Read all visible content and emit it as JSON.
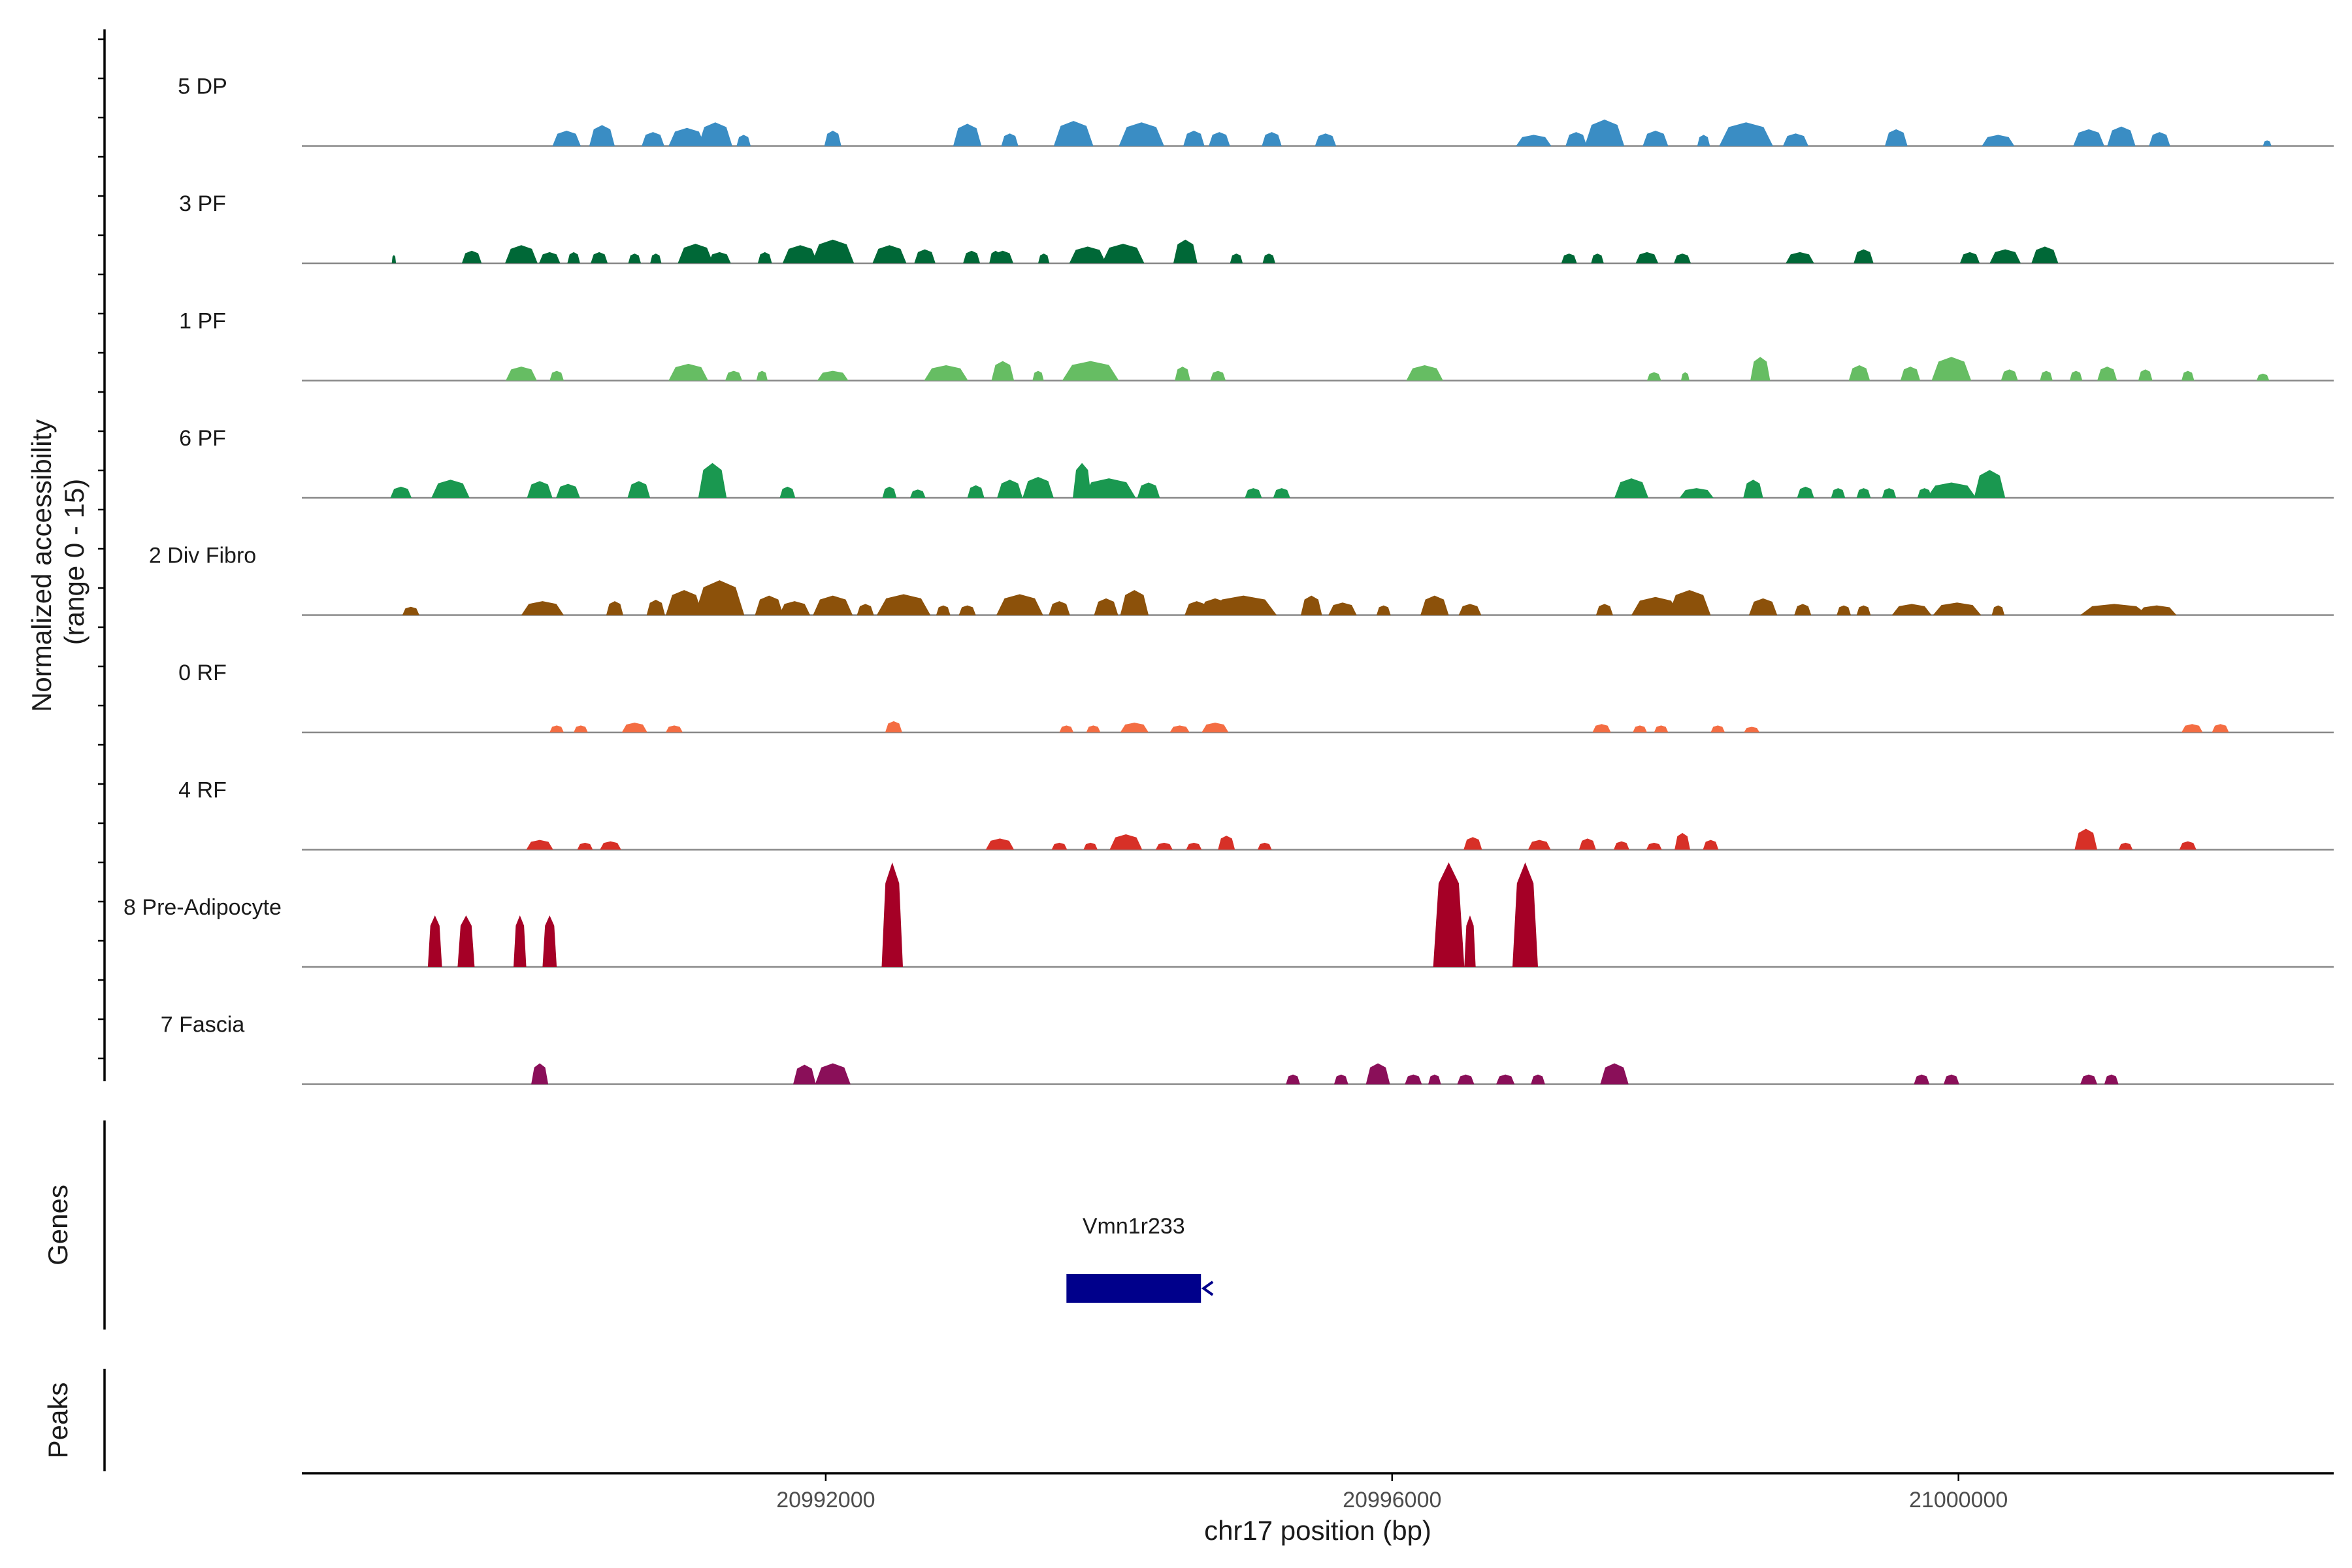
{
  "chart_data": {
    "type": "area",
    "subtype": "genome-coverage-tracks",
    "chromosome": "chr17",
    "xlim": [
      20988300,
      21002650
    ],
    "x_ticks": [
      20992000,
      20996000,
      21000000
    ],
    "x_tick_labels": [
      "20992000",
      "20996000",
      "21000000"
    ],
    "xlabel": "chr17 position (bp)",
    "ylabel_line1": "Normalized accessibility",
    "ylabel_line2": "(range 0 - 15)",
    "ylim": [
      0,
      15
    ],
    "series": [
      {
        "name": "5 DP",
        "color": "#3a8dc4",
        "peaks": [
          [
            20990170,
            2.2,
            200
          ],
          [
            20990420,
            3.0,
            180
          ],
          [
            20990780,
            2.0,
            160
          ],
          [
            20991020,
            2.6,
            260
          ],
          [
            20991220,
            3.4,
            240
          ],
          [
            20991420,
            1.6,
            100
          ],
          [
            20992050,
            2.2,
            120
          ],
          [
            20993000,
            3.2,
            200
          ],
          [
            20993300,
            1.8,
            120
          ],
          [
            20993750,
            3.6,
            280
          ],
          [
            20994230,
            3.4,
            320
          ],
          [
            20994600,
            2.2,
            150
          ],
          [
            20994780,
            2.0,
            150
          ],
          [
            20995150,
            2.0,
            140
          ],
          [
            20995530,
            1.8,
            150
          ],
          [
            20997000,
            1.6,
            250
          ],
          [
            20997300,
            2.0,
            150
          ],
          [
            20997500,
            3.8,
            280
          ],
          [
            20997860,
            2.2,
            180
          ],
          [
            20998200,
            1.6,
            90
          ],
          [
            20998500,
            3.4,
            380
          ],
          [
            20998850,
            1.8,
            180
          ],
          [
            20999560,
            2.4,
            160
          ],
          [
            21000280,
            1.6,
            230
          ],
          [
            21000920,
            2.4,
            220
          ],
          [
            21001150,
            2.8,
            200
          ],
          [
            21001420,
            2.0,
            150
          ],
          [
            21002180,
            0.8,
            60
          ]
        ]
      },
      {
        "name": "3 PF",
        "color": "#006837",
        "peaks": [
          [
            20988950,
            1.2,
            30
          ],
          [
            20989500,
            1.8,
            140
          ],
          [
            20989850,
            2.6,
            230
          ],
          [
            20990050,
            1.6,
            150
          ],
          [
            20990220,
            1.6,
            90
          ],
          [
            20990400,
            1.6,
            120
          ],
          [
            20990650,
            1.4,
            90
          ],
          [
            20990800,
            1.4,
            80
          ],
          [
            20991080,
            2.8,
            250
          ],
          [
            20991250,
            1.6,
            160
          ],
          [
            20991570,
            1.6,
            100
          ],
          [
            20991820,
            2.6,
            250
          ],
          [
            20992050,
            3.4,
            300
          ],
          [
            20992450,
            2.6,
            240
          ],
          [
            20992700,
            2.0,
            150
          ],
          [
            20993030,
            1.8,
            120
          ],
          [
            20993200,
            1.8,
            90
          ],
          [
            20993250,
            1.8,
            150
          ],
          [
            20993540,
            1.4,
            80
          ],
          [
            20993850,
            2.4,
            260
          ],
          [
            20994100,
            2.8,
            300
          ],
          [
            20994540,
            3.4,
            170
          ],
          [
            20994900,
            1.4,
            90
          ],
          [
            20995130,
            1.4,
            90
          ],
          [
            20997250,
            1.4,
            110
          ],
          [
            20997450,
            1.4,
            90
          ],
          [
            20997800,
            1.6,
            160
          ],
          [
            20998050,
            1.4,
            120
          ],
          [
            20998880,
            1.6,
            200
          ],
          [
            20999330,
            2.0,
            140
          ],
          [
            21000080,
            1.6,
            140
          ],
          [
            21000330,
            2.0,
            220
          ],
          [
            21000610,
            2.4,
            190
          ]
        ]
      },
      {
        "name": "1 PF",
        "color": "#66bd63",
        "peaks": [
          [
            20989850,
            2.0,
            220
          ],
          [
            20990100,
            1.4,
            100
          ],
          [
            20991030,
            2.4,
            280
          ],
          [
            20991350,
            1.4,
            120
          ],
          [
            20991550,
            1.4,
            80
          ],
          [
            20992050,
            1.4,
            220
          ],
          [
            20992850,
            2.2,
            310
          ],
          [
            20993250,
            2.8,
            160
          ],
          [
            20993500,
            1.4,
            80
          ],
          [
            20993870,
            2.8,
            400
          ],
          [
            20994520,
            2.0,
            110
          ],
          [
            20994770,
            1.4,
            110
          ],
          [
            20996230,
            2.2,
            260
          ],
          [
            20997850,
            1.2,
            100
          ],
          [
            20998070,
            1.2,
            60
          ],
          [
            20998600,
            3.4,
            140
          ],
          [
            20999300,
            2.2,
            150
          ],
          [
            20999660,
            2.0,
            140
          ],
          [
            20999950,
            3.4,
            280
          ],
          [
            21000360,
            1.6,
            120
          ],
          [
            21000620,
            1.4,
            90
          ],
          [
            21000830,
            1.4,
            90
          ],
          [
            21001050,
            2.0,
            140
          ],
          [
            21001320,
            1.6,
            100
          ],
          [
            21001620,
            1.4,
            90
          ],
          [
            21002150,
            1.0,
            90
          ]
        ]
      },
      {
        "name": "6 PF",
        "color": "#1a9850",
        "peaks": [
          [
            20989000,
            1.6,
            150
          ],
          [
            20989350,
            2.6,
            270
          ],
          [
            20989980,
            2.4,
            180
          ],
          [
            20990180,
            2.0,
            170
          ],
          [
            20990680,
            2.4,
            160
          ],
          [
            20991200,
            5.0,
            200
          ],
          [
            20991730,
            1.6,
            110
          ],
          [
            20992450,
            1.6,
            100
          ],
          [
            20992650,
            1.2,
            110
          ],
          [
            20993060,
            1.8,
            120
          ],
          [
            20993300,
            2.6,
            180
          ],
          [
            20993500,
            3.0,
            220
          ],
          [
            20993810,
            5.0,
            130
          ],
          [
            20994000,
            2.8,
            380
          ],
          [
            20994280,
            2.2,
            160
          ],
          [
            20995020,
            1.4,
            120
          ],
          [
            20995220,
            1.4,
            120
          ],
          [
            20997690,
            2.8,
            240
          ],
          [
            20998150,
            1.4,
            240
          ],
          [
            20998550,
            2.6,
            140
          ],
          [
            20998920,
            1.6,
            120
          ],
          [
            20999150,
            1.4,
            100
          ],
          [
            20999330,
            1.4,
            100
          ],
          [
            20999510,
            1.4,
            100
          ],
          [
            20999760,
            1.4,
            100
          ],
          [
            20999950,
            2.2,
            350
          ],
          [
            21000220,
            4.0,
            220
          ]
        ]
      },
      {
        "name": "2 Div Fibro",
        "color": "#8c510a",
        "peaks": [
          [
            20989070,
            1.2,
            120
          ],
          [
            20990000,
            2.0,
            300
          ],
          [
            20990510,
            2.0,
            120
          ],
          [
            20990800,
            2.2,
            130
          ],
          [
            20991000,
            3.6,
            260
          ],
          [
            20991250,
            5.0,
            350
          ],
          [
            20991600,
            2.8,
            200
          ],
          [
            20991780,
            2.0,
            220
          ],
          [
            20992050,
            2.8,
            280
          ],
          [
            20992280,
            1.6,
            120
          ],
          [
            20992550,
            3.0,
            380
          ],
          [
            20992830,
            1.4,
            100
          ],
          [
            20993000,
            1.4,
            120
          ],
          [
            20993370,
            3.0,
            330
          ],
          [
            20993650,
            2.0,
            150
          ],
          [
            20993980,
            2.4,
            170
          ],
          [
            20994180,
            3.6,
            200
          ],
          [
            20994620,
            2.0,
            170
          ],
          [
            20994750,
            2.4,
            220
          ],
          [
            20994950,
            2.8,
            470
          ],
          [
            20995430,
            2.8,
            150
          ],
          [
            20995650,
            1.8,
            200
          ],
          [
            20995940,
            1.4,
            100
          ],
          [
            20996300,
            2.8,
            200
          ],
          [
            20996550,
            1.6,
            160
          ],
          [
            20997500,
            1.6,
            120
          ],
          [
            20997860,
            2.6,
            340
          ],
          [
            20998100,
            3.6,
            300
          ],
          [
            20998620,
            2.4,
            200
          ],
          [
            20998900,
            1.6,
            120
          ],
          [
            20999190,
            1.4,
            100
          ],
          [
            20999330,
            1.4,
            100
          ],
          [
            20999670,
            1.6,
            280
          ],
          [
            20999990,
            1.8,
            340
          ],
          [
            21000280,
            1.4,
            90
          ],
          [
            21001100,
            1.6,
            480
          ],
          [
            21001400,
            1.4,
            280
          ]
        ]
      },
      {
        "name": "0 RF",
        "color": "#f46d43",
        "peaks": [
          [
            20990100,
            1.0,
            100
          ],
          [
            20990270,
            1.0,
            100
          ],
          [
            20990650,
            1.4,
            180
          ],
          [
            20990930,
            1.0,
            120
          ],
          [
            20992480,
            1.6,
            120
          ],
          [
            20993700,
            1.0,
            100
          ],
          [
            20993890,
            1.0,
            100
          ],
          [
            20994180,
            1.4,
            200
          ],
          [
            20994500,
            1.0,
            140
          ],
          [
            20994750,
            1.4,
            190
          ],
          [
            20997480,
            1.2,
            130
          ],
          [
            20997750,
            1.0,
            100
          ],
          [
            20997900,
            1.0,
            100
          ],
          [
            20998300,
            1.0,
            100
          ],
          [
            20998540,
            0.8,
            110
          ],
          [
            21001650,
            1.2,
            150
          ],
          [
            21001850,
            1.2,
            120
          ]
        ]
      },
      {
        "name": "4 RF",
        "color": "#d73027",
        "peaks": [
          [
            20989980,
            1.4,
            190
          ],
          [
            20990300,
            1.0,
            110
          ],
          [
            20990480,
            1.2,
            150
          ],
          [
            20993230,
            1.6,
            200
          ],
          [
            20993650,
            1.0,
            110
          ],
          [
            20993870,
            1.0,
            100
          ],
          [
            20994120,
            2.2,
            230
          ],
          [
            20994390,
            1.0,
            120
          ],
          [
            20994600,
            1.0,
            110
          ],
          [
            20994830,
            2.0,
            120
          ],
          [
            20995100,
            1.0,
            100
          ],
          [
            20996570,
            1.8,
            130
          ],
          [
            20997040,
            1.4,
            160
          ],
          [
            20997380,
            1.6,
            120
          ],
          [
            20997620,
            1.2,
            110
          ],
          [
            20997850,
            1.0,
            110
          ],
          [
            20998050,
            2.4,
            110
          ],
          [
            20998250,
            1.4,
            110
          ],
          [
            21000900,
            3.0,
            160
          ],
          [
            21001180,
            1.0,
            100
          ],
          [
            21001620,
            1.2,
            120
          ]
        ]
      },
      {
        "name": "8 Pre-Adipocyte",
        "color": "#a50026",
        "peaks": [
          [
            20989240,
            7.4,
            100
          ],
          [
            20989460,
            7.4,
            120
          ],
          [
            20989840,
            7.4,
            90
          ],
          [
            20990050,
            7.4,
            100
          ],
          [
            20992470,
            15.0,
            150
          ],
          [
            20996400,
            15.0,
            220
          ],
          [
            20996550,
            7.4,
            80
          ],
          [
            20996940,
            15.0,
            180
          ]
        ]
      },
      {
        "name": "7 Fascia",
        "color": "#8a0f59",
        "peaks": [
          [
            20989980,
            3.0,
            120
          ],
          [
            20991850,
            2.8,
            160
          ],
          [
            20992050,
            3.0,
            250
          ],
          [
            20995300,
            1.4,
            100
          ],
          [
            20995640,
            1.4,
            100
          ],
          [
            20995900,
            3.0,
            170
          ],
          [
            20996150,
            1.4,
            120
          ],
          [
            20996300,
            1.4,
            90
          ],
          [
            20996520,
            1.4,
            120
          ],
          [
            20996800,
            1.4,
            130
          ],
          [
            20997030,
            1.4,
            100
          ],
          [
            20997570,
            3.0,
            200
          ],
          [
            20999740,
            1.4,
            110
          ],
          [
            20999950,
            1.4,
            110
          ],
          [
            21000920,
            1.4,
            120
          ],
          [
            21001080,
            1.4,
            100
          ]
        ]
      }
    ],
    "genes": [
      {
        "name": "Vmn1r233",
        "start": 20993700,
        "end": 20994650,
        "strand": "-"
      }
    ],
    "peaks_track": [],
    "panel_labels": {
      "genes": "Genes",
      "peaks": "Peaks"
    }
  }
}
